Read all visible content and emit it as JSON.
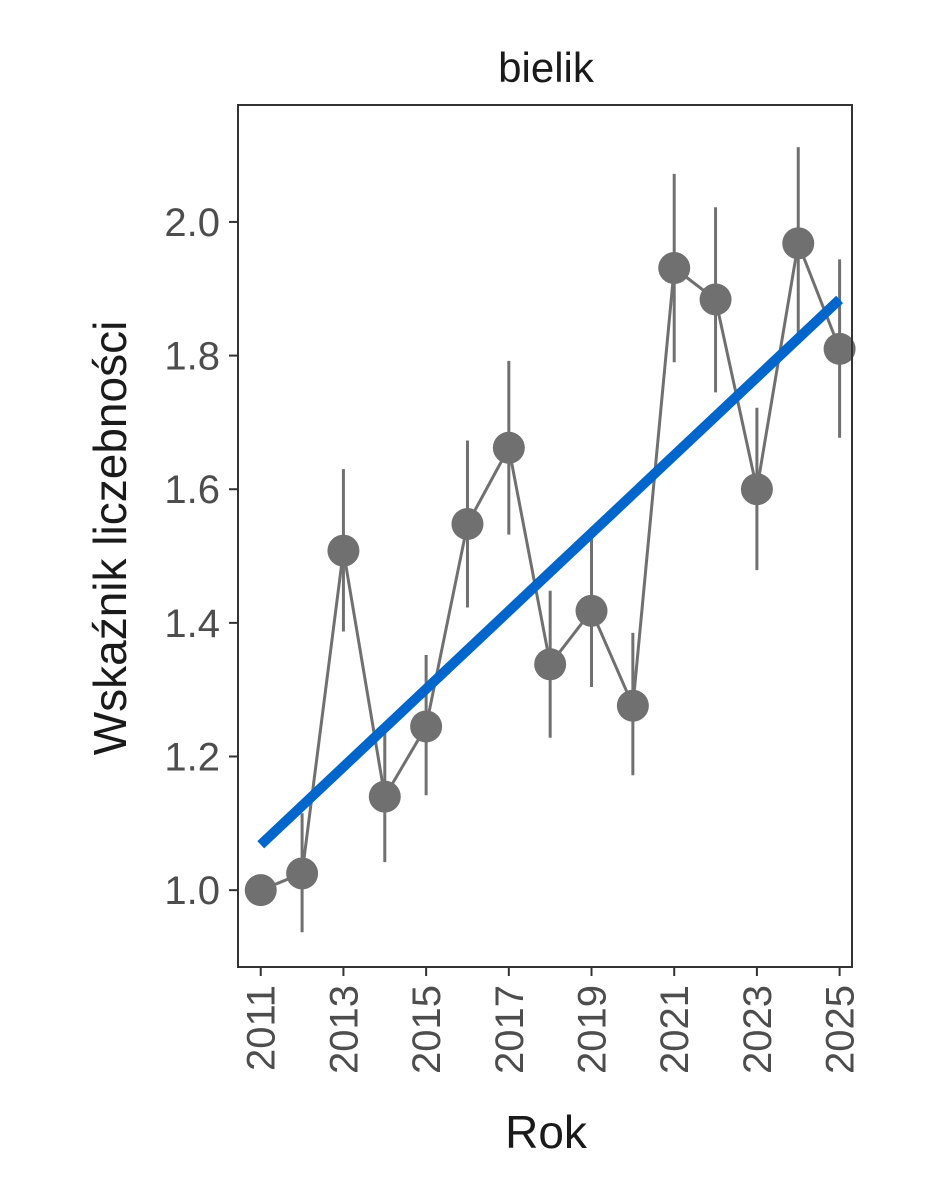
{
  "chart_data": {
    "type": "line",
    "title": "bielik",
    "xlabel": "Rok",
    "ylabel": "Wskaźnik liczebności",
    "xlim": [
      2010.45,
      2025.3
    ],
    "ylim": [
      0.885,
      2.175
    ],
    "x_ticks": [
      2011,
      2013,
      2015,
      2017,
      2019,
      2021,
      2023,
      2025
    ],
    "x_tick_labels": [
      "2011",
      "2013",
      "2015",
      "2017",
      "2019",
      "2021",
      "2023",
      "2025"
    ],
    "y_ticks": [
      1.0,
      1.2,
      1.4,
      1.6,
      1.8,
      2.0
    ],
    "y_tick_labels": [
      "1.0",
      "1.2",
      "1.4",
      "1.6",
      "1.8",
      "2.0"
    ],
    "grid": false,
    "series": [
      {
        "kind": "points-with-error-bars",
        "color": "#707070",
        "x": [
          2011,
          2012,
          2013,
          2014,
          2015,
          2016,
          2017,
          2018,
          2019,
          2020,
          2021,
          2022,
          2023,
          2024,
          2025
        ],
        "y": [
          1.0,
          1.025,
          1.508,
          1.14,
          1.245,
          1.548,
          1.662,
          1.338,
          1.418,
          1.276,
          1.931,
          1.884,
          1.6,
          1.968,
          1.81
        ],
        "lower": [
          1.0,
          0.937,
          1.387,
          1.042,
          1.142,
          1.423,
          1.532,
          1.228,
          1.304,
          1.172,
          1.79,
          1.745,
          1.479,
          1.832,
          1.677
        ],
        "upper": [
          1.0,
          1.115,
          1.63,
          1.238,
          1.352,
          1.673,
          1.792,
          1.448,
          1.532,
          1.385,
          2.072,
          2.022,
          1.722,
          2.112,
          1.944
        ]
      },
      {
        "kind": "trend-line",
        "color": "#0066CC",
        "x": [
          2011,
          2025
        ],
        "y": [
          1.068,
          1.884
        ]
      }
    ]
  }
}
